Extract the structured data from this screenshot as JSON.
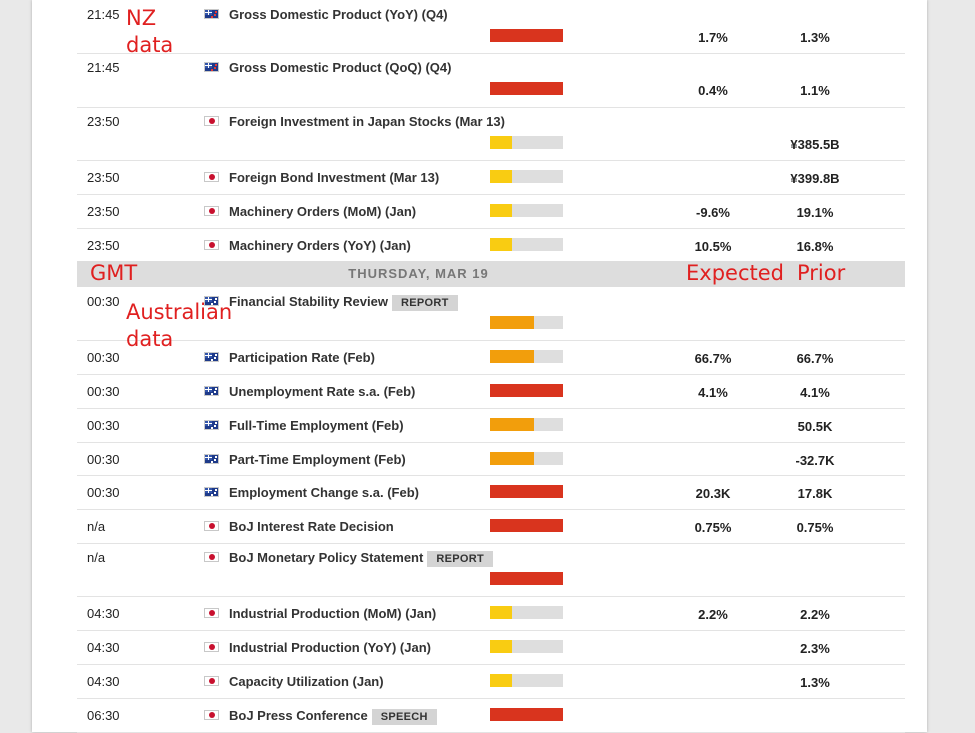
{
  "day_header": "THURSDAY, MAR 19",
  "annotations": {
    "nz_line1": "NZ",
    "nz_line2": "data",
    "gmt": "GMT",
    "australian_line1": "Australian",
    "australian_line2": "data",
    "expected": "Expected",
    "prior": "Prior"
  },
  "events": [
    {
      "time": "21:45",
      "country": "nz",
      "name": "Gross Domestic Product (YoY) (Q4)",
      "impact": "high",
      "expected": "1.7%",
      "prior": "1.3%"
    },
    {
      "time": "21:45",
      "country": "nz",
      "name": "Gross Domestic Product (QoQ) (Q4)",
      "impact": "high",
      "expected": "0.4%",
      "prior": "1.1%"
    },
    {
      "time": "23:50",
      "country": "jp",
      "name": "Foreign Investment in Japan Stocks (Mar 13)",
      "impact": "low",
      "expected": "",
      "prior": "¥385.5B"
    },
    {
      "time": "23:50",
      "country": "jp",
      "name": "Foreign Bond Investment (Mar 13)",
      "impact": "low",
      "expected": "",
      "prior": "¥399.8B"
    },
    {
      "time": "23:50",
      "country": "jp",
      "name": "Machinery Orders (MoM) (Jan)",
      "impact": "low",
      "expected": "-9.6%",
      "prior": "19.1%"
    },
    {
      "time": "23:50",
      "country": "jp",
      "name": "Machinery Orders (YoY) (Jan)",
      "impact": "low",
      "expected": "10.5%",
      "prior": "16.8%"
    },
    {
      "time": "00:30",
      "country": "au",
      "name": "Financial Stability Review",
      "tag": "REPORT",
      "impact": "med",
      "expected": "",
      "prior": ""
    },
    {
      "time": "00:30",
      "country": "au",
      "name": "Participation Rate (Feb)",
      "impact": "med",
      "expected": "66.7%",
      "prior": "66.7%"
    },
    {
      "time": "00:30",
      "country": "au",
      "name": "Unemployment Rate s.a. (Feb)",
      "impact": "high",
      "expected": "4.1%",
      "prior": "4.1%"
    },
    {
      "time": "00:30",
      "country": "au",
      "name": "Full-Time Employment (Feb)",
      "impact": "med",
      "expected": "",
      "prior": "50.5K"
    },
    {
      "time": "00:30",
      "country": "au",
      "name": "Part-Time Employment (Feb)",
      "impact": "med",
      "expected": "",
      "prior": "-32.7K"
    },
    {
      "time": "00:30",
      "country": "au",
      "name": "Employment Change s.a. (Feb)",
      "impact": "high",
      "expected": "20.3K",
      "prior": "17.8K"
    },
    {
      "time": "n/a",
      "country": "jp",
      "name": "BoJ Interest Rate Decision",
      "impact": "high",
      "expected": "0.75%",
      "prior": "0.75%"
    },
    {
      "time": "n/a",
      "country": "jp",
      "name": "BoJ Monetary Policy Statement",
      "tag": "REPORT",
      "impact": "high",
      "expected": "",
      "prior": ""
    },
    {
      "time": "04:30",
      "country": "jp",
      "name": "Industrial Production (MoM) (Jan)",
      "impact": "low",
      "expected": "2.2%",
      "prior": "2.2%"
    },
    {
      "time": "04:30",
      "country": "jp",
      "name": "Industrial Production (YoY) (Jan)",
      "impact": "low",
      "expected": "",
      "prior": "2.3%"
    },
    {
      "time": "04:30",
      "country": "jp",
      "name": "Capacity Utilization (Jan)",
      "impact": "low",
      "expected": "",
      "prior": "1.3%"
    },
    {
      "time": "06:30",
      "country": "jp",
      "name": "BoJ Press Conference",
      "tag": "SPEECH",
      "impact": "high",
      "expected": "",
      "prior": ""
    }
  ]
}
